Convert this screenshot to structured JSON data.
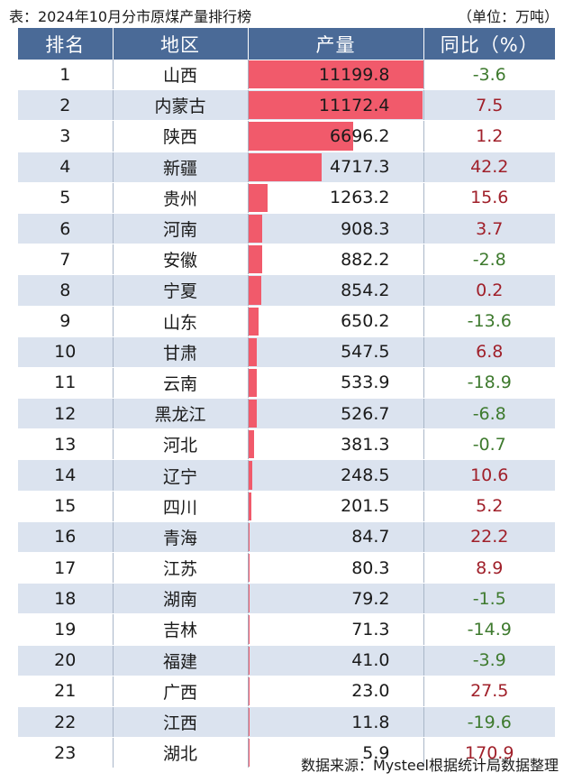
{
  "caption": "表：2024年10月分市原煤产量排行榜",
  "unit": "（单位：万吨）",
  "headers": {
    "rank": "排名",
    "region": "地区",
    "output": "产量",
    "yoy": "同比（%）"
  },
  "bar_color": "#f15a6b",
  "positive_color": "#a0202a",
  "negative_color": "#3e7a2e",
  "rows": [
    {
      "rank": "1",
      "region": "山西",
      "output": "11199.8",
      "yoy": "-3.6"
    },
    {
      "rank": "2",
      "region": "内蒙古",
      "output": "11172.4",
      "yoy": "7.5"
    },
    {
      "rank": "3",
      "region": "陕西",
      "output": "6696.2",
      "yoy": "1.2"
    },
    {
      "rank": "4",
      "region": "新疆",
      "output": "4717.3",
      "yoy": "42.2"
    },
    {
      "rank": "5",
      "region": "贵州",
      "output": "1263.2",
      "yoy": "15.6"
    },
    {
      "rank": "6",
      "region": "河南",
      "output": "908.3",
      "yoy": "3.7"
    },
    {
      "rank": "7",
      "region": "安徽",
      "output": "882.2",
      "yoy": "-2.8"
    },
    {
      "rank": "8",
      "region": "宁夏",
      "output": "854.2",
      "yoy": "0.2"
    },
    {
      "rank": "9",
      "region": "山东",
      "output": "650.2",
      "yoy": "-13.6"
    },
    {
      "rank": "10",
      "region": "甘肃",
      "output": "547.5",
      "yoy": "6.8"
    },
    {
      "rank": "11",
      "region": "云南",
      "output": "533.9",
      "yoy": "-18.9"
    },
    {
      "rank": "12",
      "region": "黑龙江",
      "output": "526.7",
      "yoy": "-6.8"
    },
    {
      "rank": "13",
      "region": "河北",
      "output": "381.3",
      "yoy": "-0.7"
    },
    {
      "rank": "14",
      "region": "辽宁",
      "output": "248.5",
      "yoy": "10.6"
    },
    {
      "rank": "15",
      "region": "四川",
      "output": "201.5",
      "yoy": "5.2"
    },
    {
      "rank": "16",
      "region": "青海",
      "output": "84.7",
      "yoy": "22.2"
    },
    {
      "rank": "17",
      "region": "江苏",
      "output": "80.3",
      "yoy": "8.9"
    },
    {
      "rank": "18",
      "region": "湖南",
      "output": "79.2",
      "yoy": "-1.5"
    },
    {
      "rank": "19",
      "region": "吉林",
      "output": "71.3",
      "yoy": "-14.9"
    },
    {
      "rank": "20",
      "region": "福建",
      "output": "41.0",
      "yoy": "-3.9"
    },
    {
      "rank": "21",
      "region": "广西",
      "output": "23.0",
      "yoy": "27.5"
    },
    {
      "rank": "22",
      "region": "江西",
      "output": "11.8",
      "yoy": "-19.6"
    },
    {
      "rank": "23",
      "region": "湖北",
      "output": "5.9",
      "yoy": "170.9"
    }
  ],
  "source": "数据来源：Mysteel根据统计局数据整理"
}
